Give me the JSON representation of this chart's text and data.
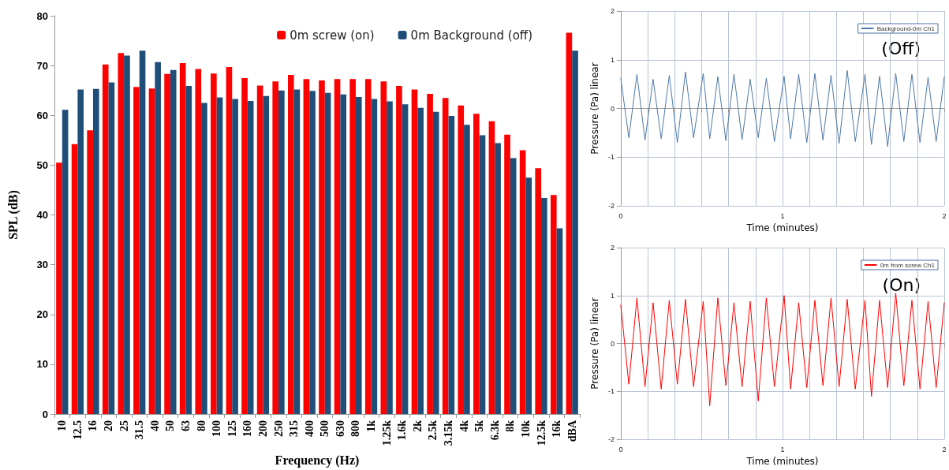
{
  "chart_data": [
    {
      "type": "bar",
      "xlabel": "Frequency (Hz)",
      "ylabel": "SPL (dB)",
      "categories": [
        "10",
        "12.5",
        "16",
        "20",
        "25",
        "31.5",
        "40",
        "50",
        "63",
        "80",
        "100",
        "125",
        "160",
        "200",
        "250",
        "315",
        "400",
        "500",
        "630",
        "800",
        "1k",
        "1.25k",
        "1.6k",
        "2k",
        "2.5k",
        "3.15k",
        "4k",
        "5k",
        "6.3k",
        "8k",
        "10k",
        "12.5k",
        "16k",
        "dBA"
      ],
      "series": [
        {
          "name": "0m screw (on)",
          "color": "#ff0000",
          "values": [
            50.5,
            54.2,
            57.0,
            70.2,
            72.5,
            65.7,
            65.4,
            68.3,
            70.5,
            69.3,
            68.4,
            69.7,
            67.5,
            66.0,
            66.8,
            68.1,
            67.3,
            67.0,
            67.3,
            67.3,
            67.3,
            66.8,
            65.9,
            65.2,
            64.3,
            63.5,
            62.0,
            60.3,
            58.8,
            56.1,
            53.0,
            49.4,
            44.0,
            76.6
          ]
        },
        {
          "name": "0m Background (off)",
          "color": "#1f4e79",
          "values": [
            61.1,
            65.2,
            65.3,
            66.6,
            72.0,
            73.0,
            70.7,
            69.1,
            65.9,
            62.5,
            63.6,
            63.3,
            62.9,
            63.9,
            65.0,
            65.2,
            64.9,
            64.5,
            64.2,
            63.7,
            63.3,
            62.8,
            62.2,
            61.5,
            60.7,
            59.9,
            58.1,
            56.0,
            54.4,
            51.4,
            47.5,
            43.4,
            37.3,
            73.0
          ]
        }
      ],
      "ylim": [
        0,
        80
      ],
      "yticks": [
        0,
        10,
        20,
        30,
        40,
        50,
        60,
        70,
        80
      ],
      "grid": false,
      "legend": "top right"
    },
    {
      "type": "line",
      "xlabel": "Time (minutes)",
      "ylabel": "Pressure (Pa) linear",
      "annotations": [
        "(Off)"
      ],
      "x": [
        0,
        0.05,
        0.1,
        0.15,
        0.2,
        0.25,
        0.3,
        0.35,
        0.4,
        0.45,
        0.51,
        0.55,
        0.6,
        0.65,
        0.7,
        0.75,
        0.8,
        0.85,
        0.9,
        0.95,
        1.01,
        1.05,
        1.1,
        1.15,
        1.2,
        1.25,
        1.3,
        1.35,
        1.4,
        1.45,
        1.51,
        1.55,
        1.6,
        1.65,
        1.7,
        1.75,
        1.8,
        1.85,
        1.9,
        1.95,
        2
      ],
      "series": [
        {
          "name": "Background-0m Ch1",
          "color": "#4f78a8",
          "values": [
            0.62,
            -0.6,
            0.7,
            -0.65,
            0.6,
            -0.62,
            0.68,
            -0.7,
            0.75,
            -0.6,
            0.72,
            -0.62,
            0.65,
            -0.66,
            0.7,
            -0.64,
            0.6,
            -0.6,
            0.62,
            -0.68,
            0.66,
            -0.62,
            0.7,
            -0.7,
            0.72,
            -0.65,
            0.68,
            -0.72,
            0.78,
            -0.68,
            0.7,
            -0.74,
            0.66,
            -0.78,
            0.72,
            -0.68,
            0.7,
            -0.7,
            0.64,
            -0.68,
            0.65
          ]
        }
      ],
      "xlim": [
        0,
        2
      ],
      "xticks": [
        0,
        {
          "value": 0.1667,
          "label": null
        },
        {
          "value": 0.3333,
          "label": null
        },
        {
          "value": 0.5,
          "label": null
        },
        {
          "value": 0.6667,
          "label": null
        },
        {
          "value": 0.8333,
          "label": null
        },
        1,
        {
          "value": 1.1667,
          "label": null
        },
        {
          "value": 1.3333,
          "label": null
        },
        {
          "value": 1.5,
          "label": null
        },
        {
          "value": 1.6667,
          "label": null
        },
        {
          "value": 1.8333,
          "label": null
        },
        2
      ],
      "ylim": [
        -2,
        2
      ],
      "yticks": [
        -2,
        -1,
        0,
        1,
        2
      ],
      "grid": true,
      "legend": "top right",
      "marker": "none",
      "line_style": "solid"
    },
    {
      "type": "line",
      "xlabel": "Time (minutes)",
      "ylabel": "Pressure (Pa) linear",
      "annotations": [
        "(On)"
      ],
      "x": [
        0,
        0.05,
        0.1,
        0.15,
        0.2,
        0.25,
        0.3,
        0.35,
        0.4,
        0.45,
        0.51,
        0.55,
        0.6,
        0.65,
        0.7,
        0.75,
        0.8,
        0.85,
        0.9,
        0.95,
        1.01,
        1.05,
        1.1,
        1.15,
        1.2,
        1.25,
        1.3,
        1.35,
        1.4,
        1.45,
        1.51,
        1.55,
        1.6,
        1.65,
        1.7,
        1.75,
        1.8,
        1.85,
        1.9,
        1.95,
        2
      ],
      "series": [
        {
          "name": "0m from screw Ch1",
          "color": "#ff0000",
          "values": [
            0.8,
            -0.85,
            0.95,
            -0.9,
            0.85,
            -0.95,
            0.9,
            -0.85,
            0.92,
            -0.9,
            0.88,
            -1.3,
            0.95,
            -0.88,
            0.85,
            -0.9,
            0.88,
            -1.2,
            0.95,
            -0.9,
            1.0,
            -0.95,
            0.85,
            -0.92,
            0.9,
            -0.88,
            0.95,
            -0.9,
            0.92,
            -0.95,
            0.9,
            -1.1,
            0.9,
            -0.92,
            1.05,
            -0.88,
            0.9,
            -0.95,
            0.88,
            -0.92,
            0.85
          ]
        }
      ],
      "xlim": [
        0,
        2
      ],
      "xticks": [
        0,
        {
          "value": 0.1667,
          "label": null
        },
        {
          "value": 0.3333,
          "label": null
        },
        {
          "value": 0.5,
          "label": null
        },
        {
          "value": 0.6667,
          "label": null
        },
        {
          "value": 0.8333,
          "label": null
        },
        1,
        {
          "value": 1.1667,
          "label": null
        },
        {
          "value": 1.3333,
          "label": null
        },
        {
          "value": 1.5,
          "label": null
        },
        {
          "value": 1.6667,
          "label": null
        },
        {
          "value": 1.8333,
          "label": null
        },
        2
      ],
      "ylim": [
        -2,
        2
      ],
      "yticks": [
        -2,
        -1,
        0,
        1,
        2
      ],
      "grid": true,
      "legend": "top right",
      "marker": "none",
      "line_style": "solid"
    }
  ]
}
